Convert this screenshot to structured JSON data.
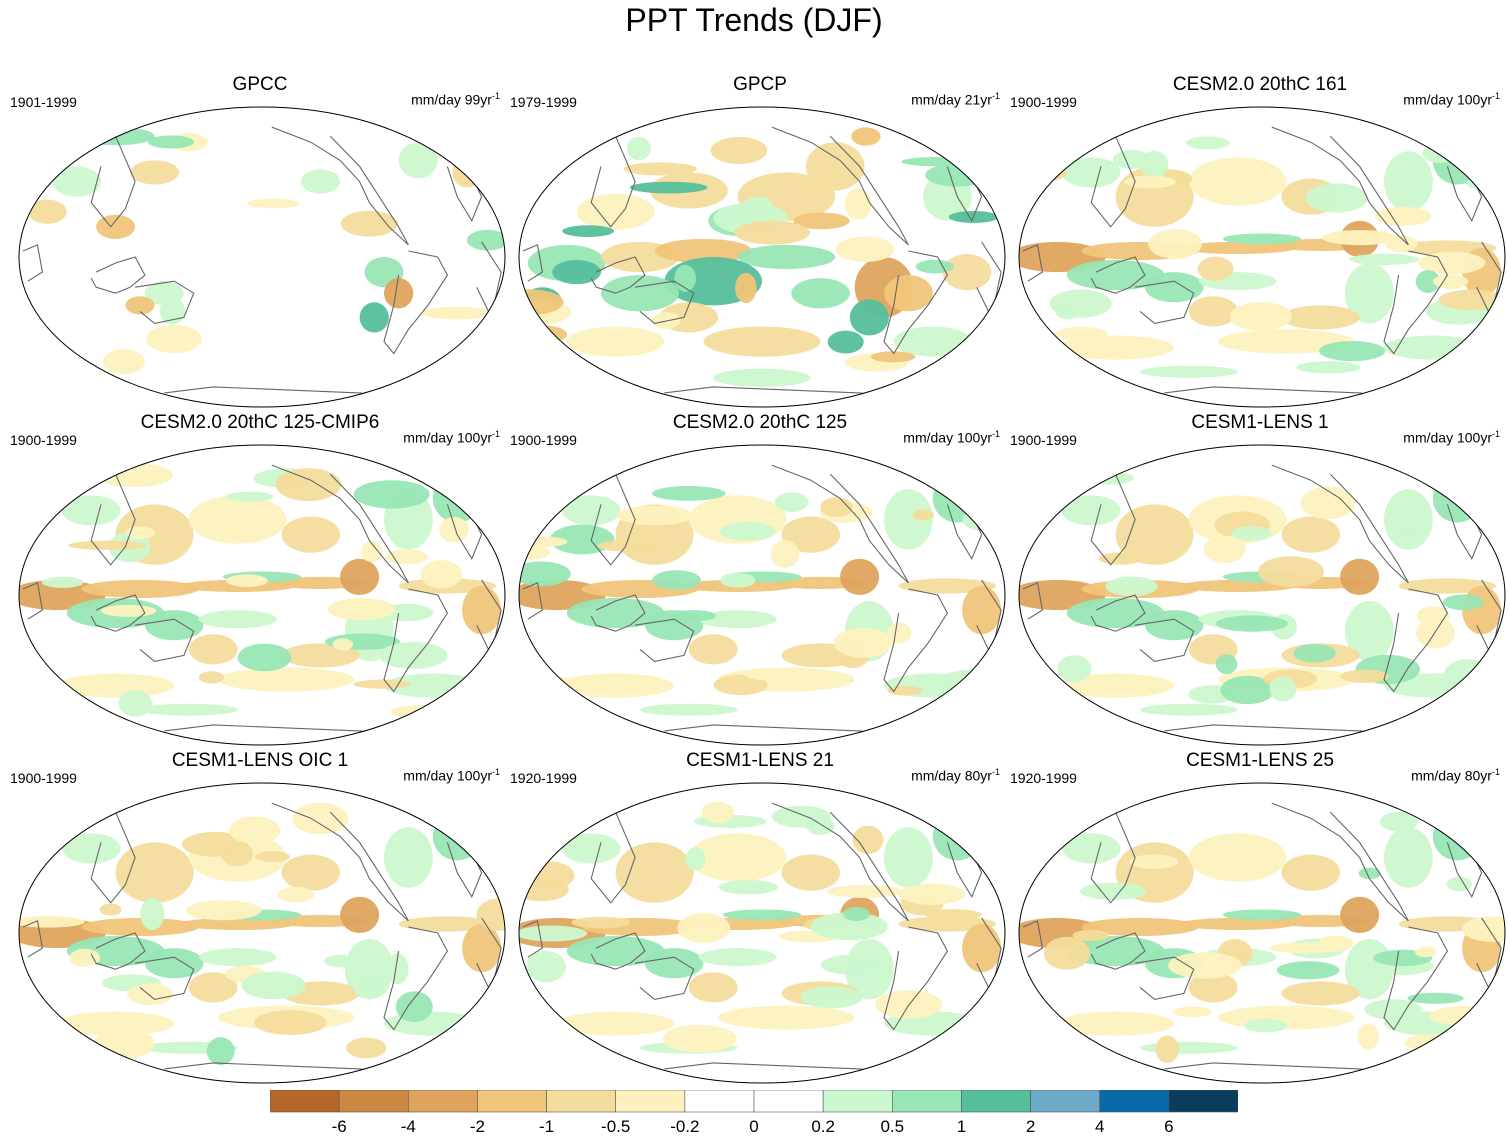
{
  "title": "PPT Trends (DJF)",
  "panels": [
    {
      "title": "GPCC",
      "period": "1901-1999",
      "units": "mm/day 99yr",
      "units_exp": "-1",
      "pattern": "land"
    },
    {
      "title": "GPCP",
      "period": "1979-1999",
      "units": "mm/day 21yr",
      "units_exp": "-1",
      "pattern": "obs"
    },
    {
      "title": "CESM2.0 20thC 161",
      "period": "1900-1999",
      "units": "mm/day 100yr",
      "units_exp": "-1",
      "pattern": "model"
    },
    {
      "title": "CESM2.0 20thC 125-CMIP6",
      "period": "1900-1999",
      "units": "mm/day 100yr",
      "units_exp": "-1",
      "pattern": "model"
    },
    {
      "title": "CESM2.0 20thC 125",
      "period": "1900-1999",
      "units": "mm/day 100yr",
      "units_exp": "-1",
      "pattern": "model"
    },
    {
      "title": "CESM1-LENS 1",
      "period": "1900-1999",
      "units": "mm/day 100yr",
      "units_exp": "-1",
      "pattern": "model"
    },
    {
      "title": "CESM1-LENS OIC 1",
      "period": "1900-1999",
      "units": "mm/day 100yr",
      "units_exp": "-1",
      "pattern": "model"
    },
    {
      "title": "CESM1-LENS 21",
      "period": "1920-1999",
      "units": "mm/day 80yr",
      "units_exp": "-1",
      "pattern": "model"
    },
    {
      "title": "CESM1-LENS 25",
      "period": "1920-1999",
      "units": "mm/day 80yr",
      "units_exp": "-1",
      "pattern": "model"
    }
  ],
  "colorbar": {
    "colors": [
      "#b5672a",
      "#cc8742",
      "#dea45e",
      "#f0c57a",
      "#f4dc9c",
      "#fdf2bf",
      "#ffffff",
      "#ffffff",
      "#ccf8cf",
      "#98e6b4",
      "#55bf9b",
      "#6fa9c8",
      "#0a6aa9",
      "#083d5c"
    ],
    "labels": [
      "-6",
      "-4",
      "-2",
      "-1",
      "-0.5",
      "-0.2",
      "0",
      "0.2",
      "0.5",
      "1",
      "2",
      "4",
      "6"
    ]
  }
}
